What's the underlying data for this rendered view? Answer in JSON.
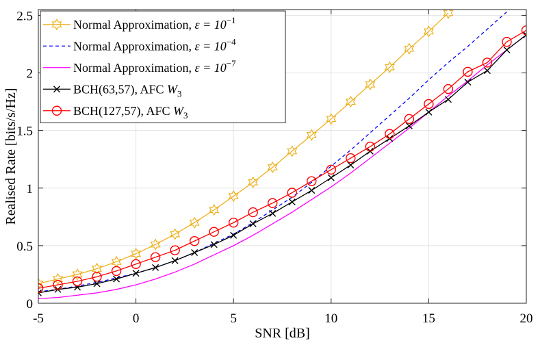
{
  "chart_data": {
    "type": "line",
    "title": "",
    "xlabel": "SNR [dB]",
    "ylabel": "Realised Rate [bits/s/Hz]",
    "xlim": [
      -5,
      20
    ],
    "ylim": [
      0,
      2.55
    ],
    "xticks": [
      -5,
      0,
      5,
      10,
      15,
      20
    ],
    "xtick_labels": [
      "-5",
      "0",
      "5",
      "10",
      "15",
      "20"
    ],
    "yticks": [
      0,
      0.5,
      1,
      1.5,
      2,
      2.5
    ],
    "ytick_labels": [
      "0",
      "0.5",
      "1",
      "1.5",
      "2",
      "2.5"
    ],
    "grid": true,
    "legend_position": "top-left",
    "series": [
      {
        "name": "Normal Approximation, ε = 10^-1",
        "legend_text": "Normal Approximation, ",
        "legend_math": "ε = 10",
        "legend_sup": "−1",
        "color": "#EDB120",
        "dash": "solid",
        "marker": "hexagram",
        "x": [
          -5,
          -4,
          -3,
          -2,
          -1,
          0,
          1,
          2,
          3,
          4,
          5,
          6,
          7,
          8,
          9,
          10,
          11,
          12,
          13,
          14,
          15,
          16
        ],
        "y": [
          0.17,
          0.21,
          0.25,
          0.3,
          0.36,
          0.43,
          0.51,
          0.6,
          0.7,
          0.81,
          0.93,
          1.05,
          1.18,
          1.32,
          1.46,
          1.6,
          1.75,
          1.9,
          2.05,
          2.21,
          2.36,
          2.52
        ]
      },
      {
        "name": "Normal Approximation, ε = 10^-4",
        "legend_text": "Normal Approximation, ",
        "legend_math": "ε = 10",
        "legend_sup": "−4",
        "color": "#0000FF",
        "dash": "dashed",
        "marker": "none",
        "x": [
          -5,
          -4,
          -3,
          -2,
          -1,
          0,
          1,
          2,
          3,
          4,
          5,
          6,
          7,
          8,
          9,
          10,
          11,
          12,
          13,
          14,
          15,
          16,
          17,
          18,
          19
        ],
        "y": [
          0.1,
          0.12,
          0.15,
          0.18,
          0.22,
          0.26,
          0.31,
          0.37,
          0.44,
          0.52,
          0.6,
          0.7,
          0.81,
          0.92,
          1.05,
          1.19,
          1.33,
          1.48,
          1.63,
          1.78,
          1.94,
          2.09,
          2.23,
          2.38,
          2.53
        ]
      },
      {
        "name": "Normal Approximation, ε = 10^-7",
        "legend_text": "Normal Approximation, ",
        "legend_math": "ε = 10",
        "legend_sup": "−7",
        "color": "#FF00FF",
        "dash": "solid",
        "marker": "none",
        "x": [
          -5,
          -4,
          -3,
          -2,
          -1,
          0,
          1,
          2,
          3,
          4,
          5,
          6,
          7,
          8,
          9,
          10,
          11,
          12,
          13,
          14,
          15,
          16,
          17,
          18,
          19,
          20
        ],
        "y": [
          0.04,
          0.05,
          0.07,
          0.09,
          0.12,
          0.16,
          0.21,
          0.27,
          0.34,
          0.42,
          0.5,
          0.59,
          0.69,
          0.79,
          0.9,
          1.01,
          1.13,
          1.26,
          1.39,
          1.52,
          1.66,
          1.8,
          1.93,
          2.07,
          2.2,
          2.33
        ]
      },
      {
        "name": "BCH(63,57), AFC W3",
        "legend_text": "BCH(63,57), AFC ",
        "legend_math": "W",
        "legend_sub": "3",
        "color": "#000000",
        "dash": "solid",
        "marker": "x",
        "x": [
          -5,
          -4,
          -3,
          -2,
          -1,
          0,
          1,
          2,
          3,
          4,
          5,
          6,
          7,
          8,
          9,
          10,
          11,
          12,
          13,
          14,
          15,
          16,
          17,
          18,
          19,
          20
        ],
        "y": [
          0.09,
          0.12,
          0.14,
          0.17,
          0.21,
          0.26,
          0.31,
          0.37,
          0.44,
          0.51,
          0.59,
          0.69,
          0.78,
          0.88,
          0.98,
          1.09,
          1.2,
          1.32,
          1.43,
          1.54,
          1.66,
          1.77,
          1.92,
          2.02,
          2.2,
          2.33
        ]
      },
      {
        "name": "BCH(127,57), AFC W3",
        "legend_text": "BCH(127,57), AFC ",
        "legend_math": "W",
        "legend_sub": "3",
        "color": "#FF0000",
        "dash": "solid",
        "marker": "circle",
        "x": [
          -5,
          -4,
          -3,
          -2,
          -1,
          0,
          1,
          2,
          3,
          4,
          5,
          6,
          7,
          8,
          9,
          10,
          11,
          12,
          13,
          14,
          15,
          16,
          17,
          18,
          19,
          20
        ],
        "y": [
          0.13,
          0.16,
          0.19,
          0.23,
          0.28,
          0.34,
          0.4,
          0.46,
          0.54,
          0.62,
          0.7,
          0.79,
          0.87,
          0.96,
          1.06,
          1.16,
          1.26,
          1.36,
          1.47,
          1.6,
          1.73,
          1.86,
          2.01,
          2.09,
          2.27,
          2.37
        ]
      }
    ]
  }
}
